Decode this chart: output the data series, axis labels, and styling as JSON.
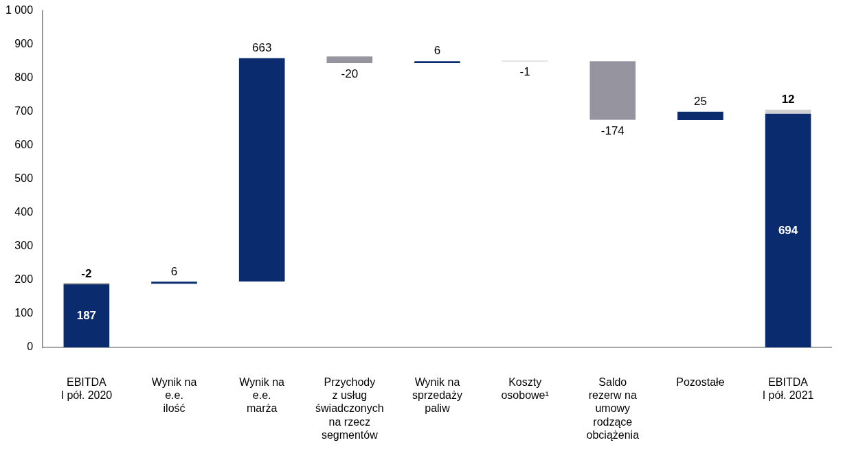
{
  "chart_data": {
    "type": "bar",
    "categories": [
      "EBITDA\nI pół. 2020",
      "Wynik na\ne.e.\nilość",
      "Wynik na\ne.e.\nmarża",
      "Przychody\nz usług\nświadczonych\nna rzecz\nsegmentów",
      "Wynik na\nsprzedaży\npaliw",
      "Koszty\nosobowe¹",
      "Saldo\nrezerw na\numowy\nrodzące\nobciążenia",
      "Pozostałe",
      "EBITDA\nI pół. 2021"
    ],
    "series": [
      {
        "colors": [
          "#0a2b6e",
          "#0a2b6e",
          "#0a2b6e",
          "#96949f",
          "#0a2b6e",
          "#96949f",
          "#96949f",
          "#0a2b6e",
          "#0a2b6e"
        ],
        "values": [
          187,
          6,
          663,
          -20,
          6,
          -1,
          -174,
          25,
          694
        ],
        "base": [
          0,
          189,
          196,
          864,
          844,
          851,
          850,
          675,
          0
        ]
      },
      {
        "colors": [
          "#000000",
          null,
          null,
          null,
          null,
          null,
          null,
          null,
          "#d0d0d0"
        ],
        "values": [
          -2,
          null,
          null,
          null,
          null,
          null,
          null,
          null,
          12
        ],
        "base": [
          189,
          null,
          null,
          null,
          null,
          null,
          null,
          null,
          694
        ]
      }
    ],
    "ylim": [
      0,
      1000
    ],
    "yticks": [
      0,
      100,
      200,
      300,
      400,
      500,
      600,
      700,
      800,
      900,
      {
        "value": 1000,
        "label": "1 000"
      }
    ],
    "grid": false,
    "legend": false,
    "data_labels": true
  }
}
